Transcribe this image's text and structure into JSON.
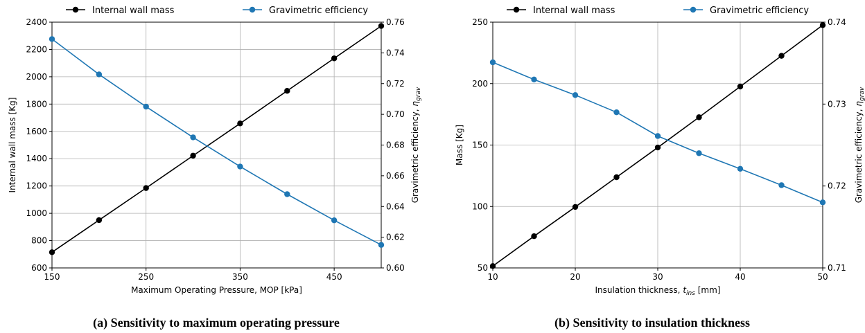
{
  "colors": {
    "mass": "#000000",
    "efficiency": "#1f77b4",
    "grid": "#b0b0b0"
  },
  "chart_data": [
    {
      "type": "line",
      "caption": "(a) Sensitivity to maximum operating pressure",
      "xlabel": "Maximum Operating Pressure, MOP [kPa]",
      "ylabel": "Internal wall mass [Kg]",
      "y2label_prefix": "Gravimetric efficiency, ",
      "y2label_symbol": "η",
      "y2label_sub": "grav",
      "xlim": [
        150,
        500
      ],
      "ylim": [
        600,
        2400
      ],
      "y2lim": [
        0.6,
        0.76
      ],
      "xticks": [
        150,
        250,
        350,
        450
      ],
      "yticks": [
        600,
        800,
        1000,
        1200,
        1400,
        1600,
        1800,
        2000,
        2200,
        2400
      ],
      "y2ticks": [
        "0.60",
        "0.62",
        "0.64",
        "0.66",
        "0.68",
        "0.70",
        "0.72",
        "0.74",
        "0.76"
      ],
      "grid": true,
      "legend_position": "top",
      "x": [
        150,
        200,
        250,
        300,
        350,
        400,
        450,
        500
      ],
      "series": [
        {
          "name": "Internal wall mass",
          "axis": "left",
          "color": "#000000",
          "values": [
            715,
            950,
            1185,
            1422,
            1658,
            1897,
            2135,
            2372
          ]
        },
        {
          "name": "Gravimetric efficiency",
          "axis": "right",
          "color": "#1f77b4",
          "values": [
            0.749,
            0.726,
            0.705,
            0.685,
            0.666,
            0.648,
            0.631,
            0.615
          ]
        }
      ]
    },
    {
      "type": "line",
      "caption": "(b) Sensitivity to insulation thickness",
      "xlabel_prefix": "Insulation thickness, ",
      "xlabel_symbol": "t",
      "xlabel_sub": "ins",
      "xlabel_suffix": " [mm]",
      "ylabel": "Mass [Kg]",
      "y2label_prefix": "Gravimetric efficiency, ",
      "y2label_symbol": "η",
      "y2label_sub": "grav",
      "xlim": [
        10,
        50
      ],
      "ylim": [
        50,
        250
      ],
      "y2lim": [
        0.71,
        0.74
      ],
      "xticks": [
        10,
        20,
        30,
        40,
        50
      ],
      "yticks": [
        50,
        100,
        150,
        200,
        250
      ],
      "y2ticks": [
        "0.71",
        "0.72",
        "0.73",
        "0.74"
      ],
      "grid": true,
      "legend_position": "top",
      "x": [
        10,
        15,
        20,
        25,
        30,
        35,
        40,
        45,
        50
      ],
      "series": [
        {
          "name": "Internal wall mass",
          "axis": "left",
          "color": "#000000",
          "values": [
            51.5,
            75.8,
            99.6,
            123.8,
            148,
            172.6,
            197.6,
            222.6,
            247.6
          ]
        },
        {
          "name": "Gravimetric efficiency",
          "axis": "right",
          "color": "#1f77b4",
          "values": [
            0.7351,
            0.733,
            0.7311,
            0.729,
            0.7261,
            0.724,
            0.7221,
            0.7201,
            0.718
          ]
        }
      ]
    }
  ]
}
